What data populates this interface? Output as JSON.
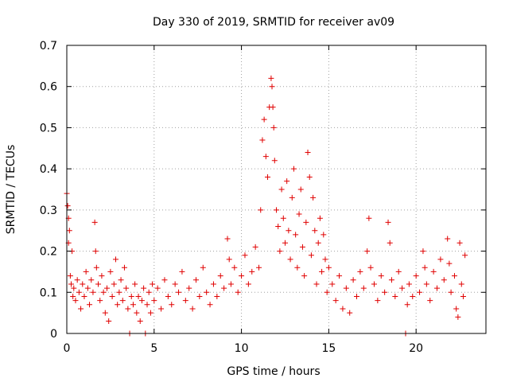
{
  "chart_data": {
    "type": "scatter",
    "title": "Day 330 of 2019, SRMTID for receiver av09",
    "xlabel": "GPS time / hours",
    "ylabel": "SRMTID / TECUs",
    "xlim": [
      0,
      24
    ],
    "ylim": [
      0,
      0.7
    ],
    "xticks": [
      0,
      5,
      10,
      15,
      20
    ],
    "xtick_labels": [
      "0",
      "5",
      "10",
      "15",
      "20"
    ],
    "yticks": [
      0,
      0.1,
      0.2,
      0.3,
      0.4,
      0.5,
      0.6,
      0.7
    ],
    "ytick_labels": [
      "0",
      "0.1",
      "0.2",
      "0.3",
      "0.4",
      "0.5",
      "0.6",
      "0.7"
    ],
    "grid": true,
    "marker": "+",
    "series": [
      {
        "name": "SRMTID",
        "color": "#e00000",
        "points": [
          [
            0.0,
            0.34
          ],
          [
            0.05,
            0.31
          ],
          [
            0.1,
            0.28
          ],
          [
            0.1,
            0.22
          ],
          [
            0.15,
            0.25
          ],
          [
            0.2,
            0.14
          ],
          [
            0.25,
            0.12
          ],
          [
            0.3,
            0.2
          ],
          [
            0.35,
            0.09
          ],
          [
            0.4,
            0.11
          ],
          [
            0.5,
            0.08
          ],
          [
            0.6,
            0.13
          ],
          [
            0.7,
            0.1
          ],
          [
            0.8,
            0.06
          ],
          [
            0.9,
            0.12
          ],
          [
            1.0,
            0.09
          ],
          [
            1.1,
            0.15
          ],
          [
            1.2,
            0.11
          ],
          [
            1.3,
            0.07
          ],
          [
            1.4,
            0.13
          ],
          [
            1.5,
            0.1
          ],
          [
            1.6,
            0.27
          ],
          [
            1.65,
            0.2
          ],
          [
            1.7,
            0.16
          ],
          [
            1.8,
            0.12
          ],
          [
            1.9,
            0.08
          ],
          [
            2.0,
            0.14
          ],
          [
            2.1,
            0.1
          ],
          [
            2.2,
            0.05
          ],
          [
            2.3,
            0.11
          ],
          [
            2.4,
            0.03
          ],
          [
            2.5,
            0.15
          ],
          [
            2.6,
            0.09
          ],
          [
            2.7,
            0.12
          ],
          [
            2.8,
            0.18
          ],
          [
            2.9,
            0.07
          ],
          [
            3.0,
            0.1
          ],
          [
            3.1,
            0.13
          ],
          [
            3.2,
            0.08
          ],
          [
            3.3,
            0.16
          ],
          [
            3.4,
            0.11
          ],
          [
            3.5,
            0.06
          ],
          [
            3.6,
            0.0
          ],
          [
            3.7,
            0.09
          ],
          [
            3.8,
            0.07
          ],
          [
            3.9,
            0.12
          ],
          [
            4.0,
            0.05
          ],
          [
            4.1,
            0.09
          ],
          [
            4.2,
            0.03
          ],
          [
            4.3,
            0.08
          ],
          [
            4.4,
            0.11
          ],
          [
            4.5,
            0.0
          ],
          [
            4.6,
            0.07
          ],
          [
            4.7,
            0.1
          ],
          [
            4.8,
            0.05
          ],
          [
            4.9,
            0.12
          ],
          [
            5.0,
            0.08
          ],
          [
            5.2,
            0.11
          ],
          [
            5.4,
            0.06
          ],
          [
            5.6,
            0.13
          ],
          [
            5.8,
            0.09
          ],
          [
            6.0,
            0.07
          ],
          [
            6.2,
            0.12
          ],
          [
            6.4,
            0.1
          ],
          [
            6.6,
            0.15
          ],
          [
            6.8,
            0.08
          ],
          [
            7.0,
            0.11
          ],
          [
            7.2,
            0.06
          ],
          [
            7.4,
            0.13
          ],
          [
            7.6,
            0.09
          ],
          [
            7.8,
            0.16
          ],
          [
            8.0,
            0.1
          ],
          [
            8.2,
            0.07
          ],
          [
            8.4,
            0.12
          ],
          [
            8.6,
            0.09
          ],
          [
            8.8,
            0.14
          ],
          [
            9.0,
            0.11
          ],
          [
            9.2,
            0.23
          ],
          [
            9.3,
            0.18
          ],
          [
            9.4,
            0.12
          ],
          [
            9.6,
            0.16
          ],
          [
            9.8,
            0.1
          ],
          [
            10.0,
            0.14
          ],
          [
            10.2,
            0.19
          ],
          [
            10.4,
            0.12
          ],
          [
            10.6,
            0.15
          ],
          [
            10.8,
            0.21
          ],
          [
            11.0,
            0.16
          ],
          [
            11.1,
            0.3
          ],
          [
            11.2,
            0.47
          ],
          [
            11.3,
            0.52
          ],
          [
            11.4,
            0.43
          ],
          [
            11.5,
            0.38
          ],
          [
            11.6,
            0.55
          ],
          [
            11.7,
            0.62
          ],
          [
            11.75,
            0.6
          ],
          [
            11.8,
            0.55
          ],
          [
            11.85,
            0.5
          ],
          [
            11.9,
            0.42
          ],
          [
            12.0,
            0.3
          ],
          [
            12.1,
            0.26
          ],
          [
            12.2,
            0.2
          ],
          [
            12.3,
            0.35
          ],
          [
            12.4,
            0.28
          ],
          [
            12.5,
            0.22
          ],
          [
            12.6,
            0.37
          ],
          [
            12.7,
            0.25
          ],
          [
            12.8,
            0.18
          ],
          [
            12.9,
            0.33
          ],
          [
            13.0,
            0.4
          ],
          [
            13.1,
            0.24
          ],
          [
            13.2,
            0.16
          ],
          [
            13.3,
            0.29
          ],
          [
            13.4,
            0.35
          ],
          [
            13.5,
            0.21
          ],
          [
            13.6,
            0.14
          ],
          [
            13.7,
            0.27
          ],
          [
            13.8,
            0.44
          ],
          [
            13.9,
            0.38
          ],
          [
            14.0,
            0.19
          ],
          [
            14.1,
            0.33
          ],
          [
            14.2,
            0.25
          ],
          [
            14.3,
            0.12
          ],
          [
            14.4,
            0.22
          ],
          [
            14.5,
            0.28
          ],
          [
            14.6,
            0.15
          ],
          [
            14.7,
            0.24
          ],
          [
            14.8,
            0.18
          ],
          [
            14.9,
            0.1
          ],
          [
            15.0,
            0.16
          ],
          [
            15.2,
            0.12
          ],
          [
            15.4,
            0.08
          ],
          [
            15.6,
            0.14
          ],
          [
            15.8,
            0.06
          ],
          [
            16.0,
            0.11
          ],
          [
            16.2,
            0.05
          ],
          [
            16.4,
            0.13
          ],
          [
            16.6,
            0.09
          ],
          [
            16.8,
            0.15
          ],
          [
            17.0,
            0.11
          ],
          [
            17.2,
            0.2
          ],
          [
            17.3,
            0.28
          ],
          [
            17.4,
            0.16
          ],
          [
            17.6,
            0.12
          ],
          [
            17.8,
            0.08
          ],
          [
            18.0,
            0.14
          ],
          [
            18.2,
            0.1
          ],
          [
            18.4,
            0.27
          ],
          [
            18.5,
            0.22
          ],
          [
            18.6,
            0.13
          ],
          [
            18.8,
            0.09
          ],
          [
            19.0,
            0.15
          ],
          [
            19.2,
            0.11
          ],
          [
            19.4,
            0.0
          ],
          [
            19.5,
            0.07
          ],
          [
            19.6,
            0.12
          ],
          [
            19.8,
            0.09
          ],
          [
            20.0,
            0.14
          ],
          [
            20.2,
            0.1
          ],
          [
            20.4,
            0.2
          ],
          [
            20.5,
            0.16
          ],
          [
            20.6,
            0.12
          ],
          [
            20.8,
            0.08
          ],
          [
            21.0,
            0.15
          ],
          [
            21.2,
            0.11
          ],
          [
            21.4,
            0.18
          ],
          [
            21.6,
            0.13
          ],
          [
            21.8,
            0.23
          ],
          [
            21.9,
            0.17
          ],
          [
            22.0,
            0.1
          ],
          [
            22.2,
            0.14
          ],
          [
            22.3,
            0.06
          ],
          [
            22.4,
            0.04
          ],
          [
            22.5,
            0.22
          ],
          [
            22.6,
            0.12
          ],
          [
            22.7,
            0.09
          ],
          [
            22.8,
            0.19
          ]
        ]
      }
    ]
  }
}
